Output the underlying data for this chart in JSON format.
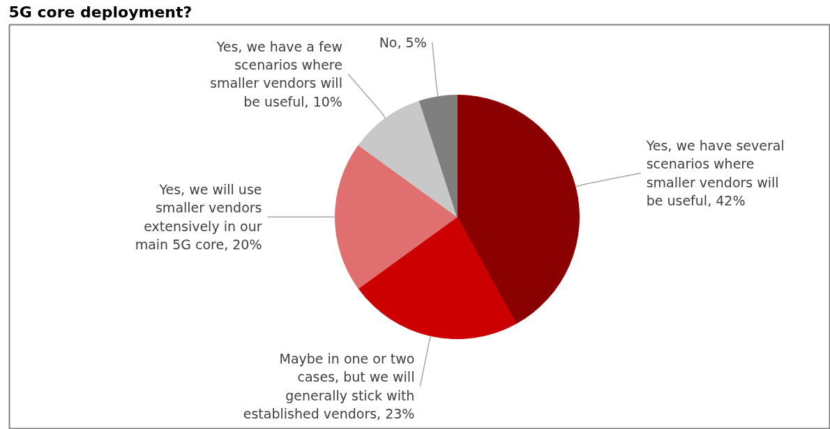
{
  "chart_data": {
    "type": "pie",
    "title": "5G core deployment?",
    "categories": [
      "Yes, we have several scenarios where smaller vendors will be useful",
      "Maybe in one or two cases, but we will generally stick with established vendors",
      "Yes, we will use smaller vendors extensively in our main 5G core",
      "Yes, we have a few scenarios where smaller vendors will be useful",
      "No"
    ],
    "values": [
      42,
      23,
      20,
      10,
      5
    ],
    "value_labels": [
      "42%",
      "23%",
      "20%",
      "10%",
      "5%"
    ],
    "colors": [
      "#8b0000",
      "#cc0000",
      "#e07070",
      "#c8c8c8",
      "#7f7f7f"
    ]
  }
}
